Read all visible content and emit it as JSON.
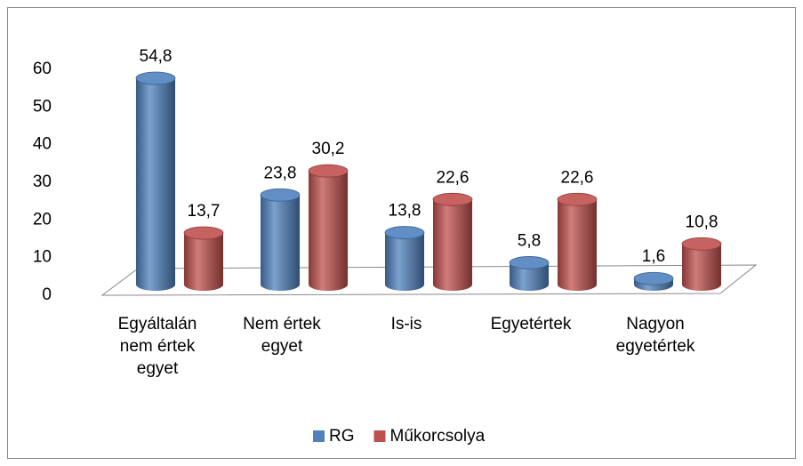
{
  "chart_data": {
    "type": "bar3d",
    "categories": [
      "Egyáltalán nem értek egyet",
      "Nem értek egyet",
      "Is-is",
      "Egyetértek",
      "Nagyon egyetértek"
    ],
    "series": [
      {
        "name": "RG",
        "color": "#4f81bd",
        "values": [
          54.8,
          23.8,
          13.8,
          5.8,
          1.6
        ],
        "value_labels": [
          "54,8",
          "23,8",
          "13,8",
          "5,8",
          "1,6"
        ]
      },
      {
        "name": "Műkorcsolya",
        "color": "#c0504d",
        "values": [
          13.7,
          30.2,
          22.6,
          22.6,
          10.8
        ],
        "value_labels": [
          "13,7",
          "30,2",
          "22,6",
          "22,6",
          "10,8"
        ]
      }
    ],
    "ylim": [
      0,
      60
    ],
    "yticks": [
      0,
      10,
      20,
      30,
      40,
      50,
      60
    ],
    "legend": "bottom"
  }
}
